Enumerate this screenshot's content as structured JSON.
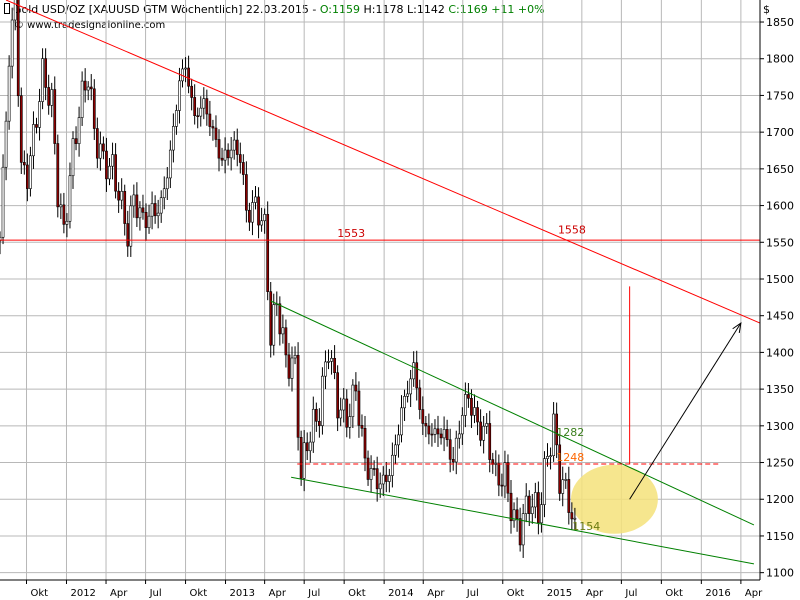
{
  "header": {
    "title": "Gold USD/OZ [XAUUSD GTM  Wöchentlich] 22.03.2015 -",
    "open": "O:1159",
    "high": "H:1178",
    "low": "L:1142",
    "close": "C:1169 +11 +0%",
    "watermark": "© www.tradesignalonline.com",
    "currency": "$"
  },
  "colors": {
    "background": "#ffffff",
    "grid": "#b8b8b8",
    "candle_up": "#ffffff",
    "candle_down": "#8b0000",
    "candle_outline": "#000000",
    "resistance": "#ff0000",
    "channel": "#008000",
    "ellipse": "#f5e27a",
    "label_green": "#3a7f1c",
    "label_orange": "#ff6600",
    "label_red": "#cc0000",
    "label_olive": "#6a7a10"
  },
  "chart_data": {
    "type": "candlestick",
    "instrument": "Gold USD/OZ",
    "timeframe": "weekly",
    "y_range": [
      1090,
      1880
    ],
    "y_ticks": [
      1100,
      1150,
      1200,
      1250,
      1300,
      1350,
      1400,
      1450,
      1500,
      1550,
      1600,
      1650,
      1700,
      1750,
      1800,
      1850
    ],
    "x_range": [
      "2011-08-01",
      "2016-05-15"
    ],
    "x_ticks": [
      {
        "label": "Okt",
        "date": "2011-10-01"
      },
      {
        "label": "2012",
        "date": "2012-01-01"
      },
      {
        "label": "Apr",
        "date": "2012-04-01"
      },
      {
        "label": "Jul",
        "date": "2012-07-01"
      },
      {
        "label": "Okt",
        "date": "2012-10-01"
      },
      {
        "label": "2013",
        "date": "2013-01-01"
      },
      {
        "label": "Apr",
        "date": "2013-04-01"
      },
      {
        "label": "Jul",
        "date": "2013-07-01"
      },
      {
        "label": "Okt",
        "date": "2013-10-01"
      },
      {
        "label": "2014",
        "date": "2014-01-01"
      },
      {
        "label": "Apr",
        "date": "2014-04-01"
      },
      {
        "label": "Jul",
        "date": "2014-07-01"
      },
      {
        "label": "Okt",
        "date": "2014-10-01"
      },
      {
        "label": "2015",
        "date": "2015-01-01"
      },
      {
        "label": "Apr",
        "date": "2015-04-01"
      },
      {
        "label": "Jul",
        "date": "2015-07-01"
      },
      {
        "label": "Okt",
        "date": "2015-10-01"
      },
      {
        "label": "2016",
        "date": "2016-01-01"
      },
      {
        "label": "Apr",
        "date": "2016-04-01"
      }
    ],
    "closes": [
      {
        "date": "2011-08-01",
        "close": 1560
      },
      {
        "date": "2011-08-22",
        "close": 1800
      },
      {
        "date": "2011-09-05",
        "close": 1880
      },
      {
        "date": "2011-09-19",
        "close": 1650
      },
      {
        "date": "2011-10-03",
        "close": 1640
      },
      {
        "date": "2011-10-24",
        "close": 1720
      },
      {
        "date": "2011-11-07",
        "close": 1780
      },
      {
        "date": "2011-11-28",
        "close": 1740
      },
      {
        "date": "2011-12-12",
        "close": 1620
      },
      {
        "date": "2011-12-26",
        "close": 1560
      },
      {
        "date": "2012-01-09",
        "close": 1640
      },
      {
        "date": "2012-01-30",
        "close": 1730
      },
      {
        "date": "2012-02-20",
        "close": 1780
      },
      {
        "date": "2012-03-05",
        "close": 1700
      },
      {
        "date": "2012-03-26",
        "close": 1660
      },
      {
        "date": "2012-04-16",
        "close": 1650
      },
      {
        "date": "2012-05-07",
        "close": 1600
      },
      {
        "date": "2012-05-21",
        "close": 1560
      },
      {
        "date": "2012-06-04",
        "close": 1610
      },
      {
        "date": "2012-06-25",
        "close": 1580
      },
      {
        "date": "2012-07-16",
        "close": 1590
      },
      {
        "date": "2012-08-06",
        "close": 1600
      },
      {
        "date": "2012-08-27",
        "close": 1670
      },
      {
        "date": "2012-09-17",
        "close": 1770
      },
      {
        "date": "2012-10-01",
        "close": 1790
      },
      {
        "date": "2012-10-22",
        "close": 1720
      },
      {
        "date": "2012-11-12",
        "close": 1740
      },
      {
        "date": "2012-12-03",
        "close": 1700
      },
      {
        "date": "2012-12-24",
        "close": 1660
      },
      {
        "date": "2013-01-14",
        "close": 1680
      },
      {
        "date": "2013-02-04",
        "close": 1670
      },
      {
        "date": "2013-02-18",
        "close": 1590
      },
      {
        "date": "2013-03-11",
        "close": 1600
      },
      {
        "date": "2013-04-01",
        "close": 1570
      },
      {
        "date": "2013-04-15",
        "close": 1420
      },
      {
        "date": "2013-04-29",
        "close": 1470
      },
      {
        "date": "2013-05-20",
        "close": 1390
      },
      {
        "date": "2013-06-10",
        "close": 1380
      },
      {
        "date": "2013-06-24",
        "close": 1230
      },
      {
        "date": "2013-07-08",
        "close": 1280
      },
      {
        "date": "2013-08-05",
        "close": 1320
      },
      {
        "date": "2013-08-26",
        "close": 1410
      },
      {
        "date": "2013-09-16",
        "close": 1330
      },
      {
        "date": "2013-10-07",
        "close": 1310
      },
      {
        "date": "2013-10-28",
        "close": 1350
      },
      {
        "date": "2013-11-18",
        "close": 1250
      },
      {
        "date": "2013-12-09",
        "close": 1230
      },
      {
        "date": "2013-12-30",
        "close": 1220
      },
      {
        "date": "2014-01-20",
        "close": 1250
      },
      {
        "date": "2014-02-10",
        "close": 1320
      },
      {
        "date": "2014-03-10",
        "close": 1380
      },
      {
        "date": "2014-03-31",
        "close": 1300
      },
      {
        "date": "2014-04-21",
        "close": 1290
      },
      {
        "date": "2014-05-19",
        "close": 1290
      },
      {
        "date": "2014-06-09",
        "close": 1250
      },
      {
        "date": "2014-06-30",
        "close": 1320
      },
      {
        "date": "2014-07-14",
        "close": 1340
      },
      {
        "date": "2014-08-04",
        "close": 1300
      },
      {
        "date": "2014-08-25",
        "close": 1290
      },
      {
        "date": "2014-09-15",
        "close": 1230
      },
      {
        "date": "2014-10-06",
        "close": 1230
      },
      {
        "date": "2014-10-27",
        "close": 1170
      },
      {
        "date": "2014-11-10",
        "close": 1160
      },
      {
        "date": "2014-12-01",
        "close": 1200
      },
      {
        "date": "2014-12-22",
        "close": 1180
      },
      {
        "date": "2015-01-12",
        "close": 1260
      },
      {
        "date": "2015-01-26",
        "close": 1300
      },
      {
        "date": "2015-02-09",
        "close": 1230
      },
      {
        "date": "2015-03-02",
        "close": 1200
      },
      {
        "date": "2015-03-16",
        "close": 1154
      },
      {
        "date": "2015-03-22",
        "close": 1169
      }
    ],
    "lines": [
      {
        "name": "resistance-trendline",
        "color": "resistance",
        "points": [
          [
            "2011-08-15",
            1880
          ],
          [
            "2016-05-15",
            1440
          ]
        ]
      },
      {
        "name": "horizontal-1553",
        "color": "resistance",
        "points": [
          [
            "2011-08-01",
            1553
          ],
          [
            "2016-05-15",
            1553
          ]
        ]
      },
      {
        "name": "upper-channel",
        "color": "channel",
        "points": [
          [
            "2013-04-15",
            1470
          ],
          [
            "2016-05-01",
            1165
          ]
        ]
      },
      {
        "name": "lower-channel",
        "color": "channel",
        "points": [
          [
            "2013-06-01",
            1230
          ],
          [
            "2016-05-01",
            1112
          ]
        ]
      },
      {
        "name": "dashed-1248",
        "color": "resistance",
        "dashed": true,
        "points": [
          [
            "2013-06-15",
            1248
          ],
          [
            "2016-02-15",
            1248
          ]
        ]
      },
      {
        "name": "target-vertical",
        "color": "resistance",
        "points": [
          [
            "2015-07-20",
            1490
          ],
          [
            "2015-07-20",
            1248
          ]
        ]
      }
    ],
    "arrow": {
      "from": [
        "2015-07-20",
        1200
      ],
      "to": [
        "2016-04-01",
        1440
      ]
    },
    "ellipse": {
      "center": [
        "2015-06-15",
        1200
      ],
      "rx_days": 100,
      "ry_value": 47
    },
    "annotations": [
      {
        "text": "1553",
        "date": "2013-09-15",
        "value": 1553,
        "color": "label_red"
      },
      {
        "text": "1558",
        "date": "2015-02-05",
        "value": 1558,
        "color": "label_red"
      },
      {
        "text": "1282",
        "date": "2015-02-01",
        "value": 1282,
        "color": "label_green"
      },
      {
        "text": "1248",
        "date": "2015-02-01",
        "value": 1248,
        "color": "label_orange"
      },
      {
        "text": "1154",
        "date": "2015-03-10",
        "value": 1154,
        "color": "label_olive"
      }
    ]
  }
}
